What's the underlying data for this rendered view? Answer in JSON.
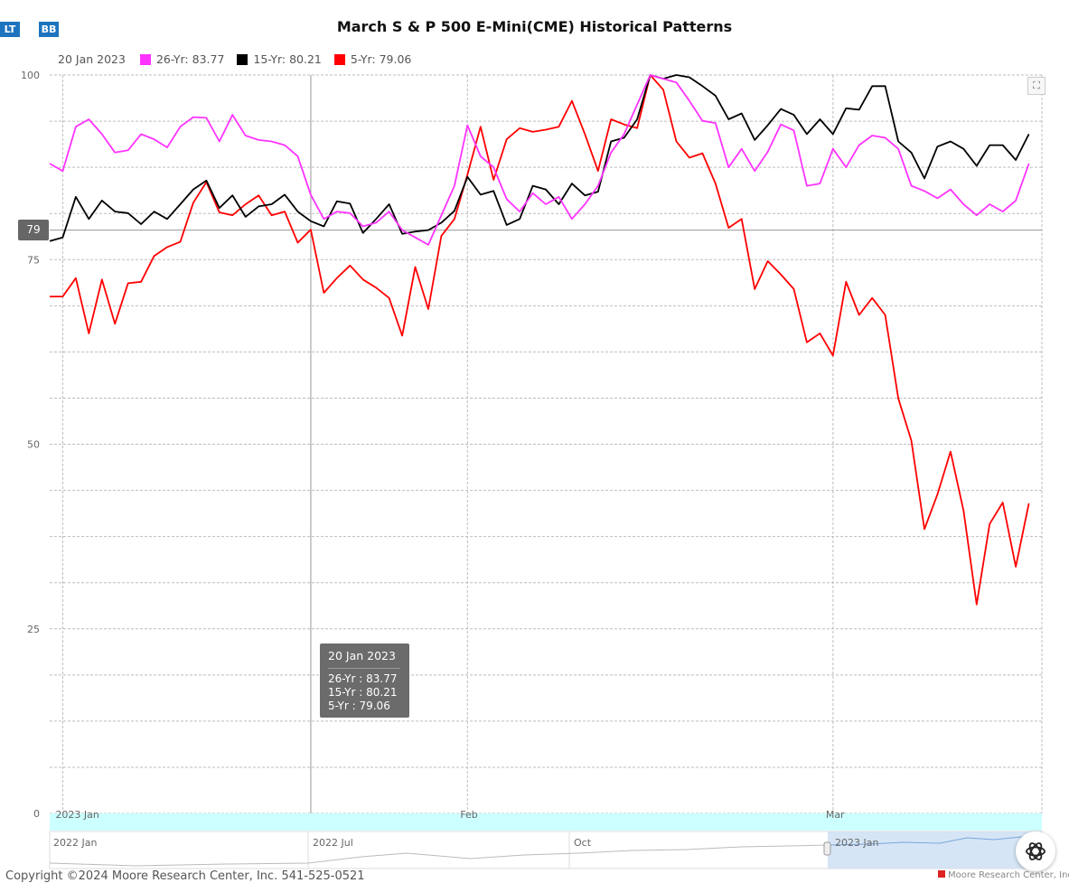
{
  "buttons": {
    "lt": "LT",
    "bb": "BB"
  },
  "title": "March S & P 500 E-Mini(CME) Historical Patterns",
  "legend": {
    "date": "20 Jan 2023",
    "items": [
      {
        "label": "26-Yr: 83.77",
        "color": "#ff33ff"
      },
      {
        "label": "15-Yr: 80.21",
        "color": "#000000"
      },
      {
        "label": "5-Yr: 79.06",
        "color": "#ff0000"
      }
    ]
  },
  "cursor_label": "79",
  "tooltip": {
    "date": "20 Jan 2023",
    "lines": [
      "26-Yr : 83.77",
      "15-Yr : 80.21",
      "5-Yr : 79.06"
    ]
  },
  "navigator": {
    "top_labels": [
      "2023 Jan",
      "Feb",
      "Mar"
    ],
    "bottom_labels": [
      "2022 Jan",
      "2022 Jul",
      "Oct",
      "2023 Jan"
    ]
  },
  "copyright": "Copyright ©2024 Moore Research Center, Inc. 541-525-0521",
  "brand": "Moore Research Center, Inc.",
  "icons": {
    "expand": "expand-icon",
    "logo": "openai-logo-icon"
  },
  "chart_data": {
    "type": "line",
    "title": "March S & P 500 E-Mini(CME) Historical Patterns",
    "ylim": [
      0,
      100
    ],
    "yticks": [
      0,
      25,
      50,
      75,
      100
    ],
    "xlim": [
      0,
      76
    ],
    "x_tick_labels": [
      {
        "label": "2023 Jan",
        "x": 1
      },
      {
        "label": "Feb",
        "x": 32
      },
      {
        "label": "Mar",
        "x": 60
      }
    ],
    "grid": true,
    "crosshair": {
      "x": 20,
      "y": 79
    },
    "series": [
      {
        "name": "26-Yr",
        "color": "#ff33ff",
        "values": [
          88,
          87,
          93,
          94,
          92,
          89.5,
          89.8,
          92,
          91.3,
          90.2,
          93,
          94.3,
          94.2,
          91,
          94.6,
          91.8,
          91.2,
          91,
          90.5,
          89,
          83.77,
          80.5,
          81.5,
          81.3,
          79.5,
          80,
          81.5,
          79,
          78,
          77,
          81,
          85,
          93.2,
          89,
          87.5,
          83.2,
          81.5,
          84,
          82.5,
          83.5,
          80.5,
          82.5,
          85,
          89.5,
          92,
          96,
          100,
          99.5,
          99,
          96.5,
          93.8,
          93.5,
          87.5,
          90,
          87,
          89.6,
          93.3,
          92.5,
          85,
          85.3,
          90,
          87.5,
          90.5,
          91.8,
          91.5,
          90,
          85,
          84.3,
          83.3,
          84.5,
          82.5,
          81,
          82.5,
          81.5,
          83,
          88
        ]
      },
      {
        "name": "15-Yr",
        "color": "#000000",
        "values": [
          77.5,
          78,
          83.5,
          80.5,
          83,
          81.5,
          81.3,
          79.8,
          81.5,
          80.5,
          82.5,
          84.5,
          85.7,
          82,
          83.7,
          80.8,
          82.2,
          82.5,
          83.8,
          81.5,
          80.21,
          79.5,
          82.9,
          82.6,
          78.6,
          80.5,
          82.5,
          78.5,
          78.8,
          79,
          80,
          81.6,
          86.2,
          83.8,
          84.3,
          79.7,
          80.5,
          85,
          84.5,
          82.5,
          85.3,
          83.7,
          84.2,
          91,
          91.5,
          94,
          100,
          99.5,
          100,
          99.7,
          98.5,
          97.2,
          94,
          94.8,
          91.2,
          93.2,
          95.4,
          94.6,
          92,
          94,
          92,
          95.5,
          95.3,
          98.5,
          98.5,
          91,
          89.5,
          86,
          90.3,
          91,
          90,
          87.7,
          90.5,
          90.5,
          88.5,
          92
        ]
      },
      {
        "name": "5-Yr",
        "color": "#ff0000",
        "values": [
          70,
          70,
          72.5,
          65,
          72.3,
          66.3,
          71.8,
          72,
          75.5,
          76.7,
          77.4,
          82.7,
          85.5,
          81.4,
          81,
          82.5,
          83.7,
          81,
          81.5,
          77.3,
          79.06,
          70.5,
          72.5,
          74.2,
          72.3,
          71.2,
          69.8,
          64.7,
          74,
          68.3,
          78.2,
          80.5,
          86.5,
          93,
          85.8,
          91.3,
          92.8,
          92.3,
          92.6,
          93,
          96.5,
          92,
          87,
          94,
          93.3,
          92.8,
          100,
          98,
          91,
          88.8,
          89.4,
          85.3,
          79.3,
          80.5,
          71,
          74.8,
          73,
          71,
          63.8,
          65,
          62,
          72,
          67.5,
          69.8,
          67.5,
          56.2,
          50.5,
          38.5,
          43.2,
          49,
          41,
          28.3,
          39.2,
          42.1,
          33.4,
          42
        ]
      }
    ]
  }
}
